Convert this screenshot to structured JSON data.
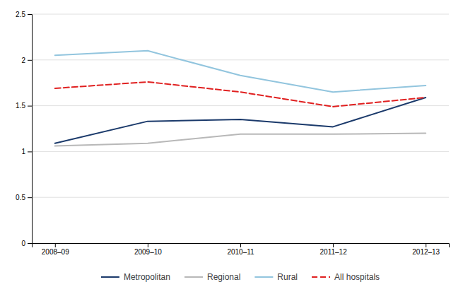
{
  "chart_data": {
    "type": "line",
    "categories": [
      "2008–09",
      "2009–10",
      "2010–11",
      "2011–12",
      "2012–13"
    ],
    "series": [
      {
        "name": "Metropolitan",
        "color": "#1b3a6b",
        "line_style": "solid",
        "values": [
          1.09,
          1.33,
          1.35,
          1.27,
          1.59
        ]
      },
      {
        "name": "Regional",
        "color": "#b8b8b8",
        "line_style": "solid",
        "values": [
          1.06,
          1.09,
          1.19,
          1.19,
          1.2
        ]
      },
      {
        "name": "Rural",
        "color": "#92c5de",
        "line_style": "solid",
        "values": [
          2.05,
          2.1,
          1.83,
          1.65,
          1.72
        ]
      },
      {
        "name": "All hospitals",
        "color": "#e02020",
        "line_style": "dashed",
        "values": [
          1.69,
          1.76,
          1.65,
          1.49,
          1.59
        ]
      }
    ],
    "ylim": [
      0,
      2.5
    ],
    "yticks": [
      0,
      0.5,
      1,
      1.5,
      2,
      2.5
    ],
    "grid": true,
    "legend": "bottom"
  }
}
